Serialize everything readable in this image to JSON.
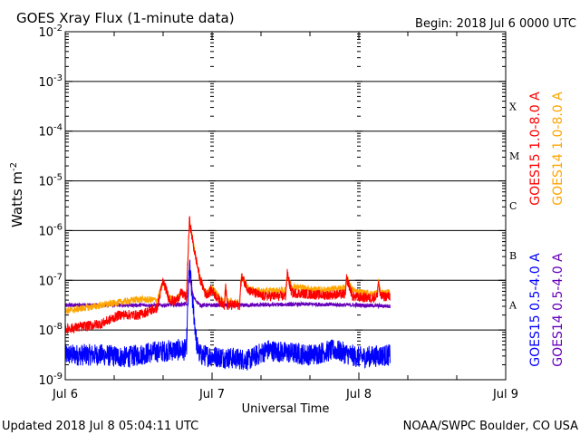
{
  "chart_data": {
    "type": "line",
    "title": "GOES Xray Flux (1-minute data)",
    "begin_label": "Begin:  2018 Jul 6 0000 UTC",
    "xlabel": "Universal Time",
    "ylabel": "Watts m",
    "ylabel_exp": "-2",
    "x_unit": "hours since 2018 Jul 6 0000 UTC",
    "xlim": [
      0,
      72
    ],
    "ylim_log10": [
      -9,
      -2
    ],
    "y_scale": "log",
    "grid": "horizontal at each decade",
    "x_ticks": [
      {
        "value": 0,
        "label": "Jul 6"
      },
      {
        "value": 24,
        "label": "Jul 7"
      },
      {
        "value": 48,
        "label": "Jul 8"
      },
      {
        "value": 72,
        "label": "Jul 9"
      }
    ],
    "y_ticks": [
      {
        "exp": -2,
        "base": "10",
        "sup": "-2"
      },
      {
        "exp": -3,
        "base": "10",
        "sup": "-3"
      },
      {
        "exp": -4,
        "base": "10",
        "sup": "-4"
      },
      {
        "exp": -5,
        "base": "10",
        "sup": "-5"
      },
      {
        "exp": -6,
        "base": "10",
        "sup": "-6"
      },
      {
        "exp": -7,
        "base": "10",
        "sup": "-7"
      },
      {
        "exp": -8,
        "base": "10",
        "sup": "-8"
      },
      {
        "exp": -9,
        "base": "10",
        "sup": "-9"
      }
    ],
    "flare_classes": [
      {
        "label": "X",
        "center_log10": -3.5
      },
      {
        "label": "M",
        "center_log10": -4.5
      },
      {
        "label": "C",
        "center_log10": -5.5
      },
      {
        "label": "B",
        "center_log10": -6.5
      },
      {
        "label": "A",
        "center_log10": -7.5
      }
    ],
    "series": [
      {
        "name": "GOES15 0.5-4.0 A",
        "color": "#0000ff",
        "noise": 0.22,
        "legend_group": "short",
        "points_log10": [
          [
            0,
            -8.5
          ],
          [
            6,
            -8.5
          ],
          [
            10,
            -8.55
          ],
          [
            14,
            -8.45
          ],
          [
            18,
            -8.4
          ],
          [
            19.8,
            -8.4
          ],
          [
            20.1,
            -7.3
          ],
          [
            20.3,
            -6.69
          ],
          [
            20.8,
            -7.4
          ],
          [
            21.5,
            -8.3
          ],
          [
            22,
            -8.5
          ],
          [
            26,
            -8.55
          ],
          [
            30,
            -8.6
          ],
          [
            33,
            -8.4
          ],
          [
            36,
            -8.45
          ],
          [
            40,
            -8.5
          ],
          [
            44,
            -8.4
          ],
          [
            48,
            -8.55
          ],
          [
            53.1,
            -8.5
          ]
        ]
      },
      {
        "name": "GOES14 0.5-4.0 A",
        "color": "#6600bb",
        "noise": 0.04,
        "legend_group": "short",
        "points_log10": [
          [
            0,
            -7.5
          ],
          [
            10,
            -7.5
          ],
          [
            16,
            -7.5
          ],
          [
            19.8,
            -7.48
          ],
          [
            20.3,
            -6.95
          ],
          [
            21,
            -7.35
          ],
          [
            22,
            -7.5
          ],
          [
            30,
            -7.5
          ],
          [
            40,
            -7.48
          ],
          [
            48,
            -7.5
          ],
          [
            53.1,
            -7.52
          ]
        ]
      },
      {
        "name": "GOES14 1.0-8.0 A",
        "color": "#ffa500",
        "noise": 0.07,
        "legend_group": "long",
        "points_log10": [
          [
            0,
            -7.62
          ],
          [
            6,
            -7.5
          ],
          [
            10,
            -7.42
          ],
          [
            12,
            -7.38
          ],
          [
            15,
            -7.4
          ],
          [
            16,
            -7.05
          ],
          [
            17,
            -7.35
          ],
          [
            18,
            -7.4
          ],
          [
            19,
            -7.25
          ],
          [
            19.8,
            -7.3
          ],
          [
            20.3,
            -5.79
          ],
          [
            21,
            -6.3
          ],
          [
            22,
            -6.95
          ],
          [
            23,
            -7.28
          ],
          [
            24,
            -7.15
          ],
          [
            25,
            -7.32
          ],
          [
            26,
            -7.45
          ],
          [
            26.2,
            -7.1
          ],
          [
            26.5,
            -7.42
          ],
          [
            28.5,
            -7.45
          ],
          [
            28.8,
            -6.92
          ],
          [
            30,
            -7.18
          ],
          [
            32,
            -7.22
          ],
          [
            36,
            -7.2
          ],
          [
            36.3,
            -6.87
          ],
          [
            37,
            -7.12
          ],
          [
            42,
            -7.2
          ],
          [
            45.8,
            -7.15
          ],
          [
            46,
            -6.96
          ],
          [
            47,
            -7.2
          ],
          [
            50,
            -7.28
          ],
          [
            51,
            -7.25
          ],
          [
            51.2,
            -7.0
          ],
          [
            51.5,
            -7.25
          ],
          [
            53.1,
            -7.25
          ]
        ]
      },
      {
        "name": "GOES15 1.0-8.0 A",
        "color": "#ff0000",
        "noise": 0.1,
        "legend_group": "long",
        "points_log10": [
          [
            0,
            -7.98
          ],
          [
            3,
            -7.93
          ],
          [
            6,
            -7.87
          ],
          [
            9,
            -7.69
          ],
          [
            12,
            -7.7
          ],
          [
            15,
            -7.56
          ],
          [
            16,
            -7.01
          ],
          [
            17,
            -7.38
          ],
          [
            18,
            -7.43
          ],
          [
            19,
            -7.25
          ],
          [
            19.8,
            -7.35
          ],
          [
            20.3,
            -5.79
          ],
          [
            21,
            -6.34
          ],
          [
            22,
            -6.96
          ],
          [
            23,
            -7.29
          ],
          [
            24,
            -7.2
          ],
          [
            25,
            -7.38
          ],
          [
            26,
            -7.5
          ],
          [
            26.2,
            -7.1
          ],
          [
            26.5,
            -7.5
          ],
          [
            28.5,
            -7.5
          ],
          [
            28.8,
            -6.92
          ],
          [
            30,
            -7.2
          ],
          [
            32,
            -7.32
          ],
          [
            36,
            -7.32
          ],
          [
            36.3,
            -6.87
          ],
          [
            37,
            -7.25
          ],
          [
            42,
            -7.3
          ],
          [
            45.8,
            -7.28
          ],
          [
            46,
            -6.96
          ],
          [
            47,
            -7.33
          ],
          [
            50,
            -7.36
          ],
          [
            51,
            -7.32
          ],
          [
            51.2,
            -7.0
          ],
          [
            51.5,
            -7.33
          ],
          [
            53.1,
            -7.32
          ]
        ]
      }
    ]
  },
  "footer": {
    "updated": "Updated 2018 Jul  8 05:04:11 UTC",
    "credit": "NOAA/SWPC Boulder, CO USA"
  }
}
